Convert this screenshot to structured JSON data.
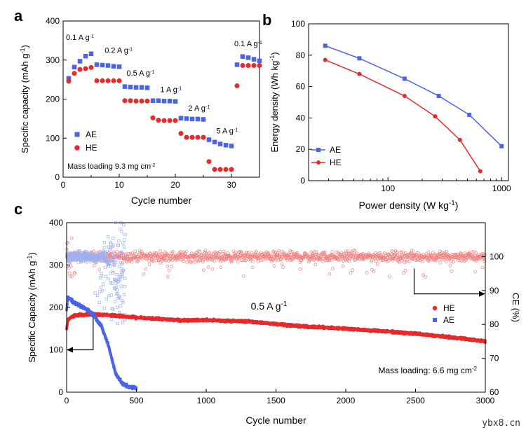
{
  "watermark": "ybx8.cn",
  "colors": {
    "ae": "#4a64e8",
    "he": "#e62a2a",
    "he_light": "#f08080",
    "ae_light": "#9fb0f2",
    "axis": "#000000"
  },
  "chart_data": [
    {
      "panel_label": "a",
      "type": "scatter",
      "xlabel": "Cycle number",
      "ylabel": "Specific capacity (mAh g",
      "ylabel_sup": "-1",
      "ylabel_end": ")",
      "xlim": [
        0,
        35
      ],
      "ylim": [
        0,
        400
      ],
      "xticks": [
        0,
        10,
        20,
        30
      ],
      "yticks": [
        0,
        100,
        200,
        300,
        400
      ],
      "legend": {
        "position": "center-left",
        "entries": [
          "AE",
          "HE"
        ]
      },
      "annotation": {
        "text": "Mass loading 9.3 mg cm",
        "sup": "-2"
      },
      "rate_labels": [
        {
          "text": "0.1 A g",
          "sup": "-1",
          "x": 0.5,
          "y": 352
        },
        {
          "text": "0.2 A g",
          "sup": "-1",
          "x": 7.4,
          "y": 318
        },
        {
          "text": "0.5 A g",
          "sup": "-1",
          "x": 11.3,
          "y": 260
        },
        {
          "text": "1 A g",
          "sup": "-1",
          "x": 17.3,
          "y": 218
        },
        {
          "text": "2 A g",
          "sup": "-1",
          "x": 22.3,
          "y": 170
        },
        {
          "text": "5 A g",
          "sup": "-1",
          "x": 27.3,
          "y": 112
        },
        {
          "text": "0.1 A g",
          "sup": "-1",
          "x": 30.5,
          "y": 335
        }
      ],
      "series": [
        {
          "name": "AE",
          "marker": "square",
          "x": [
            1,
            2,
            3,
            4,
            5,
            6,
            7,
            8,
            9,
            10,
            11,
            12,
            13,
            14,
            15,
            16,
            17,
            18,
            19,
            20,
            21,
            22,
            23,
            24,
            25,
            26,
            27,
            28,
            29,
            30,
            31,
            32,
            33,
            34,
            35
          ],
          "y": [
            253,
            282,
            297,
            310,
            316,
            288,
            287,
            286,
            284,
            283,
            232,
            231,
            230,
            230,
            229,
            196,
            196,
            195,
            195,
            194,
            151,
            150,
            149,
            149,
            148,
            96,
            90,
            85,
            82,
            80,
            288,
            309,
            306,
            302,
            298
          ]
        },
        {
          "name": "HE",
          "marker": "circle",
          "x": [
            1,
            2,
            3,
            4,
            5,
            6,
            7,
            8,
            9,
            10,
            11,
            12,
            13,
            14,
            15,
            16,
            17,
            18,
            19,
            20,
            21,
            22,
            23,
            24,
            25,
            26,
            27,
            28,
            29,
            30,
            31,
            32,
            33,
            34,
            35
          ],
          "y": [
            246,
            266,
            276,
            278,
            281,
            247,
            247,
            247,
            247,
            247,
            196,
            196,
            195,
            195,
            195,
            152,
            146,
            145,
            145,
            145,
            112,
            102,
            102,
            102,
            102,
            40,
            20,
            20,
            20,
            20,
            234,
            286,
            286,
            286,
            286
          ]
        }
      ]
    },
    {
      "panel_label": "b",
      "type": "line",
      "xlabel": "Power density (W kg",
      "xlabel_sup": "-1",
      "xlabel_end": ")",
      "ylabel": "Energy density (Wh kg",
      "ylabel_sup": "-1",
      "ylabel_end": ")",
      "xscale": "log",
      "xlim": [
        20,
        1150
      ],
      "ylim": [
        0,
        100
      ],
      "xticks": [
        100,
        1000
      ],
      "yticks": [
        0,
        20,
        40,
        60,
        80,
        100
      ],
      "legend": {
        "position": "lower-left",
        "entries": [
          "AE",
          "HE"
        ]
      },
      "series": [
        {
          "name": "AE",
          "marker": "square",
          "x": [
            28,
            56,
            140,
            280,
            520,
            1000
          ],
          "y": [
            86,
            78,
            65,
            54,
            42,
            22
          ]
        },
        {
          "name": "HE",
          "marker": "circle",
          "x": [
            28,
            56,
            140,
            260,
            430,
            650
          ],
          "y": [
            77,
            68,
            54,
            41,
            26,
            6
          ]
        }
      ]
    },
    {
      "panel_label": "c",
      "type": "scatter",
      "xlabel": "Cycle number",
      "ylabel": "Specific Capacity (mAh g",
      "ylabel_sup": "-1",
      "ylabel_end": ")",
      "y2label": "CE (%)",
      "xlim": [
        0,
        3000
      ],
      "ylim": [
        0,
        400
      ],
      "y2lim": [
        60,
        110
      ],
      "xticks": [
        0,
        500,
        1000,
        1500,
        2000,
        2500,
        3000
      ],
      "yticks": [
        0,
        100,
        200,
        300,
        400
      ],
      "y2ticks": [
        60,
        70,
        80,
        90,
        100
      ],
      "rate_label": {
        "text": "0.5 A g",
        "sup": "-1"
      },
      "legend": {
        "position": "right",
        "entries": [
          "HE",
          "AE"
        ]
      },
      "annotation": {
        "text": "Mass loading: 6.6 mg cm",
        "sup": "-2"
      },
      "series": [
        {
          "name": "HE capacity",
          "axis": "left",
          "x": [
            0,
            10,
            50,
            100,
            200,
            300,
            500,
            800,
            1000,
            1300,
            1500,
            1700,
            2000,
            2300,
            2500,
            2800,
            3000
          ],
          "y": [
            150,
            172,
            180,
            183,
            184,
            182,
            176,
            170,
            170,
            167,
            161,
            155,
            150,
            143,
            138,
            128,
            120
          ]
        },
        {
          "name": "AE capacity",
          "axis": "left",
          "x": [
            0,
            10,
            50,
            100,
            150,
            200,
            250,
            300,
            350,
            400,
            450,
            500
          ],
          "y": [
            195,
            225,
            212,
            203,
            195,
            180,
            155,
            110,
            45,
            20,
            12,
            10
          ]
        },
        {
          "name": "HE CE",
          "axis": "right",
          "x": [
            0,
            3000
          ],
          "y": [
            100,
            100
          ],
          "scatter_range": [
            95,
            106
          ]
        },
        {
          "name": "AE CE",
          "axis": "right",
          "x": [
            0,
            250,
            420
          ],
          "y": [
            100,
            100,
            95
          ],
          "scatter_range": [
            75,
            107
          ]
        }
      ]
    }
  ]
}
